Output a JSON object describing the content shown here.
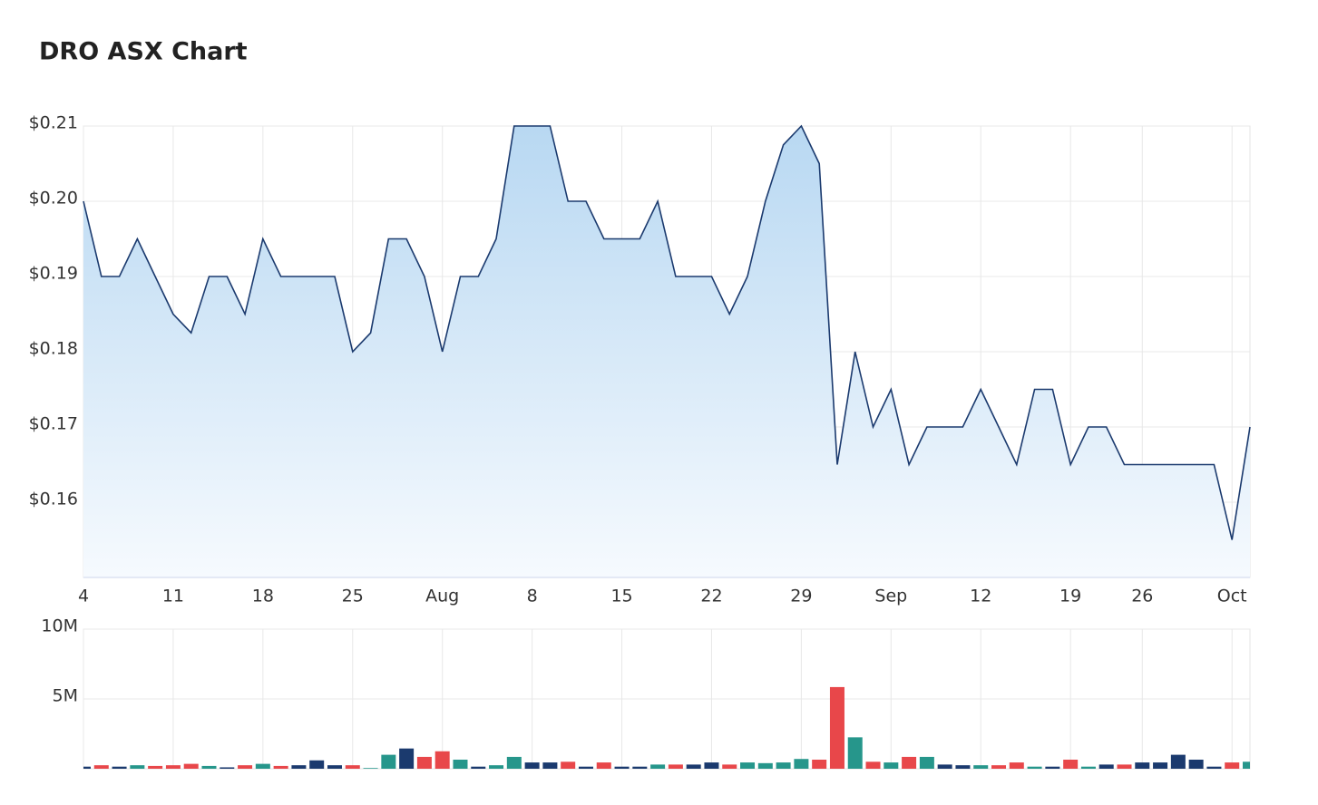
{
  "chart_data": [
    {
      "type": "area",
      "title": "DRO ASX Chart",
      "color": "#1b3a6e",
      "fill_top": "#b8d8f2",
      "fill_bottom": "#f6fafe",
      "grid": true,
      "categories": [
        "4",
        null,
        null,
        null,
        null,
        "11",
        null,
        null,
        null,
        null,
        "18",
        null,
        null,
        null,
        null,
        "25",
        null,
        null,
        null,
        null,
        "Aug",
        null,
        null,
        null,
        null,
        "8",
        null,
        null,
        null,
        null,
        "15",
        null,
        null,
        null,
        null,
        "22",
        null,
        null,
        null,
        null,
        "29",
        null,
        null,
        null,
        null,
        "Sep",
        null,
        null,
        null,
        null,
        "12",
        null,
        null,
        null,
        null,
        "19",
        null,
        null,
        null,
        "26",
        null,
        null,
        null,
        null,
        "Oct",
        null
      ],
      "values": [
        0.2,
        0.19,
        0.19,
        0.195,
        0.19,
        0.185,
        0.1825,
        0.19,
        0.19,
        0.185,
        0.195,
        0.19,
        0.19,
        0.19,
        0.19,
        0.18,
        0.1825,
        0.195,
        0.195,
        0.19,
        0.18,
        0.19,
        0.19,
        0.195,
        0.21,
        0.21,
        0.21,
        0.2,
        0.2,
        0.195,
        0.195,
        0.195,
        0.2,
        0.19,
        0.19,
        0.19,
        0.185,
        0.19,
        0.2,
        0.2075,
        0.21,
        0.205,
        0.165,
        0.18,
        0.17,
        0.175,
        0.165,
        0.17,
        0.17,
        0.17,
        0.175,
        0.17,
        0.165,
        0.175,
        0.175,
        0.165,
        0.17,
        0.17,
        0.165,
        0.165,
        0.165,
        0.165,
        0.165,
        0.165,
        0.155,
        0.17
      ],
      "ylim": [
        0.15,
        0.21
      ],
      "yticks": [
        {
          "value": 0.16,
          "label": "$0.16"
        },
        {
          "value": 0.17,
          "label": "$0.17"
        },
        {
          "value": 0.18,
          "label": "$0.18"
        },
        {
          "value": 0.19,
          "label": "$0.19"
        },
        {
          "value": 0.2,
          "label": "$0.20"
        },
        {
          "value": 0.21,
          "label": "$0.21"
        }
      ]
    },
    {
      "type": "bar",
      "grid": true,
      "values": [
        150000,
        250000,
        150000,
        250000,
        200000,
        250000,
        350000,
        200000,
        100000,
        250000,
        350000,
        200000,
        250000,
        600000,
        250000,
        250000,
        50000,
        1000000,
        1450000,
        850000,
        1250000,
        650000,
        150000,
        250000,
        850000,
        450000,
        450000,
        500000,
        150000,
        450000,
        150000,
        150000,
        300000,
        300000,
        300000,
        450000,
        300000,
        450000,
        400000,
        450000,
        700000,
        650000,
        5850000,
        2250000,
        500000,
        450000,
        850000,
        850000,
        300000,
        250000,
        250000,
        250000,
        450000,
        150000,
        150000,
        650000,
        150000,
        300000,
        300000,
        450000,
        450000,
        1000000,
        650000,
        150000,
        450000,
        500000
      ],
      "colors": [
        "#1b3a6e",
        "#e8474a",
        "#1b3a6e",
        "#26968b",
        "#e8474a",
        "#e8474a",
        "#e8474a",
        "#26968b",
        "#1b3a6e",
        "#e8474a",
        "#26968b",
        "#e8474a",
        "#1b3a6e",
        "#1b3a6e",
        "#1b3a6e",
        "#e8474a",
        "#26968b",
        "#26968b",
        "#1b3a6e",
        "#e8474a",
        "#e8474a",
        "#26968b",
        "#1b3a6e",
        "#26968b",
        "#26968b",
        "#1b3a6e",
        "#1b3a6e",
        "#e8474a",
        "#1b3a6e",
        "#e8474a",
        "#1b3a6e",
        "#1b3a6e",
        "#26968b",
        "#e8474a",
        "#1b3a6e",
        "#1b3a6e",
        "#e8474a",
        "#26968b",
        "#26968b",
        "#26968b",
        "#26968b",
        "#e8474a",
        "#e8474a",
        "#26968b",
        "#e8474a",
        "#26968b",
        "#e8474a",
        "#26968b",
        "#1b3a6e",
        "#1b3a6e",
        "#26968b",
        "#e8474a",
        "#e8474a",
        "#26968b",
        "#1b3a6e",
        "#e8474a",
        "#26968b",
        "#1b3a6e",
        "#e8474a",
        "#1b3a6e",
        "#1b3a6e",
        "#1b3a6e",
        "#1b3a6e",
        "#1b3a6e",
        "#e8474a",
        "#26968b"
      ],
      "ylim": [
        0,
        10000000
      ],
      "yticks": [
        {
          "value": 5000000,
          "label": "5M"
        },
        {
          "value": 10000000,
          "label": "10M"
        }
      ]
    }
  ]
}
